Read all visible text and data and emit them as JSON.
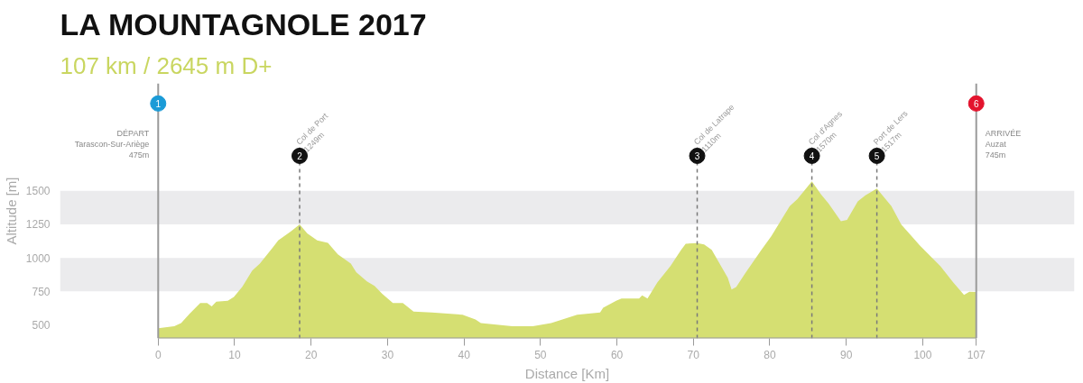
{
  "chart_data": {
    "type": "area",
    "title": "LA MOUNTAGNOLE 2017",
    "subtitle": "107 km / 2645 m D+",
    "xlabel": "Distance [Km]",
    "ylabel": "Altitude [m]",
    "x": [
      0,
      2.1,
      3,
      4.1,
      5.5,
      6.4,
      7,
      7.6,
      9.1,
      9.9,
      11,
      12.3,
      13.3,
      15,
      15.7,
      17.4,
      18.5,
      19.5,
      20.8,
      22.2,
      23.5,
      25.2,
      25.9,
      27.3,
      28.3,
      29.3,
      30.7,
      32,
      33.4,
      35.8,
      39.8,
      41.5,
      42.2,
      46.3,
      49,
      51.4,
      54.8,
      57.8,
      58.2,
      59.9,
      60.6,
      62.9,
      63.3,
      64,
      65.3,
      67,
      68.4,
      69,
      70.5,
      71.4,
      72.4,
      74.5,
      75,
      75.6,
      76.8,
      78.9,
      80.2,
      82.6,
      83.6,
      85.5,
      86.7,
      87.7,
      89.3,
      90.1,
      91.5,
      92.5,
      94,
      95.9,
      97.2,
      99.6,
      102.3,
      104,
      105.4,
      106.1,
      107
    ],
    "series": [
      {
        "color": "#d5df72",
        "values": [
          475,
          490,
          514,
          583,
          663,
          663,
          638,
          673,
          680,
          708,
          784,
          905,
          957,
          1078,
          1130,
          1199,
          1249,
          1182,
          1130,
          1112,
          1026,
          957,
          894,
          825,
          791,
          732,
          663,
          663,
          600,
          593,
          576,
          541,
          514,
          490,
          490,
          514,
          576,
          593,
          628,
          680,
          697,
          697,
          721,
          697,
          818,
          939,
          1060,
          1105,
          1110,
          1100,
          1059,
          852,
          765,
          783,
          886,
          1059,
          1162,
          1386,
          1438,
          1570,
          1472,
          1403,
          1272,
          1283,
          1421,
          1466,
          1517,
          1386,
          1248,
          1093,
          938,
          817,
          724,
          748,
          745
        ]
      }
    ],
    "xlim": [
      0,
      107
    ],
    "ylim": [
      400,
      2300
    ],
    "xticks": [
      0,
      10,
      20,
      30,
      40,
      50,
      60,
      70,
      80,
      90,
      100,
      107
    ],
    "yticks": [
      500,
      750,
      1000,
      1250,
      1500
    ],
    "grid": false,
    "bands": [
      {
        "axis": "y",
        "from": 750,
        "to": 1000,
        "color": "#ebebed"
      },
      {
        "axis": "y",
        "from": 1250,
        "to": 1500,
        "color": "#ebebed"
      }
    ],
    "ref_lines": [
      {
        "axis": "x",
        "value": 0,
        "label": "DÉPART\nTarascon-Sur-Ariège\n475m",
        "color": "#9a9a9a",
        "line_style": "solid"
      },
      {
        "axis": "x",
        "value": 18.5,
        "label": "Col de Port\n1249m",
        "color": "#7a7a7a",
        "line_style": "dashed"
      },
      {
        "axis": "x",
        "value": 70.5,
        "label": "Col de Latrape\n1110m",
        "color": "#7a7a7a",
        "line_style": "dashed"
      },
      {
        "axis": "x",
        "value": 85.5,
        "label": "Col d'Agnes\n1570m",
        "color": "#7a7a7a",
        "line_style": "dashed"
      },
      {
        "axis": "x",
        "value": 94,
        "label": "Port de Lers\n1517m",
        "color": "#7a7a7a",
        "line_style": "dashed"
      },
      {
        "axis": "x",
        "value": 107,
        "label": "ARRIVÉE\nAuzat\n745m",
        "color": "#9a9a9a",
        "line_style": "solid"
      }
    ],
    "annotations": [
      {
        "text": "1",
        "x": 0,
        "y": 2150
      },
      {
        "text": "2",
        "x": 18.5,
        "y": 1760
      },
      {
        "text": "3",
        "x": 70.5,
        "y": 1760
      },
      {
        "text": "4",
        "x": 85.5,
        "y": 1760
      },
      {
        "text": "5",
        "x": 94,
        "y": 1760
      },
      {
        "text": "6",
        "x": 107,
        "y": 2150
      }
    ]
  }
}
